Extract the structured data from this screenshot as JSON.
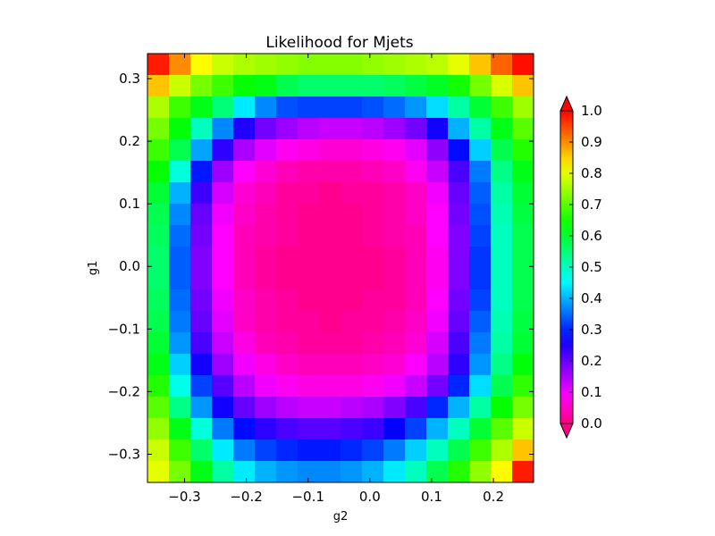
{
  "chart_data": {
    "type": "heatmap",
    "title": "Likelihood for Mjets",
    "xlabel": "g2",
    "ylabel": "g1",
    "xlim": [
      -0.36,
      0.265
    ],
    "ylim": [
      -0.345,
      0.34
    ],
    "x_ticks": [
      -0.3,
      -0.2,
      -0.1,
      0.0,
      0.1,
      0.2
    ],
    "x_tick_labels": [
      "−0.3",
      "−0.2",
      "−0.1",
      "0.0",
      "0.1",
      "0.2"
    ],
    "y_ticks": [
      -0.3,
      -0.2,
      -0.1,
      0.0,
      0.1,
      0.2,
      0.3
    ],
    "y_tick_labels": [
      "−0.3",
      "−0.2",
      "−0.1",
      "0.0",
      "0.1",
      "0.2",
      "0.3"
    ],
    "colormap": "gist_rainbow_r",
    "colorbar": {
      "range": [
        0.0,
        1.0
      ],
      "ticks": [
        0.0,
        0.1,
        0.2,
        0.3,
        0.4,
        0.5,
        0.6,
        0.7,
        0.8,
        0.9,
        1.0
      ],
      "tick_labels": [
        "0.0",
        "0.1",
        "0.2",
        "0.3",
        "0.4",
        "0.5",
        "0.6",
        "0.7",
        "0.8",
        "0.9",
        "1.0"
      ],
      "extend": "both",
      "placement": "right"
    },
    "grid": false,
    "cols": 18,
    "rows": 20,
    "values_top_to_bottom": [
      [
        0.98,
        0.9,
        0.82,
        0.78,
        0.76,
        0.75,
        0.74,
        0.73,
        0.73,
        0.73,
        0.74,
        0.75,
        0.76,
        0.77,
        0.8,
        0.86,
        0.93,
        0.99
      ],
      [
        0.86,
        0.78,
        0.72,
        0.68,
        0.64,
        0.62,
        0.58,
        0.56,
        0.56,
        0.56,
        0.56,
        0.57,
        0.59,
        0.61,
        0.65,
        0.72,
        0.79,
        0.86
      ],
      [
        0.76,
        0.68,
        0.62,
        0.55,
        0.44,
        0.37,
        0.33,
        0.32,
        0.32,
        0.32,
        0.33,
        0.35,
        0.38,
        0.43,
        0.52,
        0.6,
        0.68,
        0.75
      ],
      [
        0.72,
        0.63,
        0.5,
        0.37,
        0.25,
        0.19,
        0.16,
        0.14,
        0.13,
        0.13,
        0.14,
        0.16,
        0.19,
        0.26,
        0.4,
        0.52,
        0.62,
        0.7
      ],
      [
        0.68,
        0.58,
        0.39,
        0.24,
        0.15,
        0.11,
        0.08,
        0.07,
        0.06,
        0.06,
        0.07,
        0.08,
        0.11,
        0.17,
        0.28,
        0.42,
        0.58,
        0.66
      ],
      [
        0.64,
        0.48,
        0.29,
        0.16,
        0.09,
        0.06,
        0.04,
        0.03,
        0.03,
        0.03,
        0.04,
        0.05,
        0.08,
        0.13,
        0.22,
        0.36,
        0.54,
        0.62
      ],
      [
        0.6,
        0.4,
        0.23,
        0.12,
        0.06,
        0.04,
        0.02,
        0.02,
        0.01,
        0.02,
        0.02,
        0.03,
        0.05,
        0.1,
        0.2,
        0.34,
        0.52,
        0.6
      ],
      [
        0.58,
        0.37,
        0.2,
        0.1,
        0.05,
        0.03,
        0.02,
        0.01,
        0.01,
        0.01,
        0.02,
        0.03,
        0.05,
        0.09,
        0.19,
        0.33,
        0.51,
        0.59
      ],
      [
        0.57,
        0.35,
        0.19,
        0.09,
        0.04,
        0.03,
        0.02,
        0.01,
        0.01,
        0.01,
        0.02,
        0.03,
        0.04,
        0.09,
        0.18,
        0.32,
        0.5,
        0.58
      ],
      [
        0.56,
        0.34,
        0.18,
        0.09,
        0.04,
        0.02,
        0.01,
        0.01,
        0.01,
        0.01,
        0.01,
        0.02,
        0.04,
        0.08,
        0.18,
        0.31,
        0.5,
        0.58
      ],
      [
        0.56,
        0.34,
        0.18,
        0.09,
        0.04,
        0.02,
        0.01,
        0.01,
        0.01,
        0.01,
        0.01,
        0.02,
        0.04,
        0.08,
        0.18,
        0.31,
        0.5,
        0.58
      ],
      [
        0.57,
        0.35,
        0.19,
        0.1,
        0.05,
        0.03,
        0.02,
        0.01,
        0.01,
        0.01,
        0.02,
        0.02,
        0.04,
        0.09,
        0.19,
        0.32,
        0.5,
        0.58
      ],
      [
        0.58,
        0.36,
        0.2,
        0.11,
        0.05,
        0.03,
        0.02,
        0.02,
        0.01,
        0.02,
        0.02,
        0.03,
        0.05,
        0.1,
        0.2,
        0.34,
        0.51,
        0.59
      ],
      [
        0.6,
        0.38,
        0.22,
        0.13,
        0.07,
        0.04,
        0.03,
        0.02,
        0.02,
        0.02,
        0.03,
        0.04,
        0.06,
        0.12,
        0.22,
        0.36,
        0.52,
        0.6
      ],
      [
        0.62,
        0.42,
        0.26,
        0.16,
        0.1,
        0.07,
        0.05,
        0.04,
        0.04,
        0.04,
        0.05,
        0.06,
        0.09,
        0.14,
        0.24,
        0.38,
        0.54,
        0.63
      ],
      [
        0.66,
        0.47,
        0.32,
        0.21,
        0.14,
        0.1,
        0.08,
        0.07,
        0.07,
        0.07,
        0.08,
        0.1,
        0.13,
        0.19,
        0.3,
        0.43,
        0.58,
        0.67
      ],
      [
        0.7,
        0.54,
        0.38,
        0.26,
        0.2,
        0.16,
        0.14,
        0.13,
        0.13,
        0.14,
        0.15,
        0.18,
        0.22,
        0.3,
        0.4,
        0.52,
        0.64,
        0.72
      ],
      [
        0.74,
        0.62,
        0.48,
        0.36,
        0.28,
        0.24,
        0.22,
        0.21,
        0.21,
        0.22,
        0.23,
        0.27,
        0.32,
        0.4,
        0.5,
        0.6,
        0.7,
        0.78
      ],
      [
        0.78,
        0.68,
        0.56,
        0.44,
        0.36,
        0.32,
        0.3,
        0.29,
        0.29,
        0.3,
        0.32,
        0.36,
        0.42,
        0.5,
        0.58,
        0.68,
        0.76,
        0.86
      ],
      [
        0.8,
        0.72,
        0.62,
        0.52,
        0.44,
        0.4,
        0.38,
        0.37,
        0.37,
        0.38,
        0.4,
        0.44,
        0.5,
        0.58,
        0.66,
        0.74,
        0.82,
        0.98
      ]
    ]
  }
}
